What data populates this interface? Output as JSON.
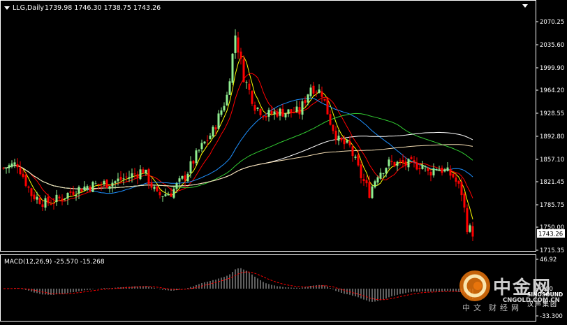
{
  "header": {
    "symbol_label": "LLG,Daily",
    "ohlc_text": "1739.98 1746.30 1738.75 1743.26"
  },
  "price_axis": {
    "ticks": [
      "2070.25",
      "2035.60",
      "1999.90",
      "1964.20",
      "1928.55",
      "1892.80",
      "1857.10",
      "1821.45",
      "1785.75",
      "1750.00",
      "1715.35"
    ],
    "current_price": "1743.26"
  },
  "macd": {
    "label": "MACD(12,26,9) -25.570 -15.268",
    "ticks": [
      "46.92",
      "0.00",
      "-33.300"
    ]
  },
  "watermark": {
    "brand_chars": [
      "中",
      "金",
      "网"
    ],
    "url": "CNGOLD.COM.CN",
    "sub_chars": [
      "中",
      "文",
      "财",
      "经",
      "网"
    ],
    "sino_text": "SINOSOUND",
    "sino_chars": [
      "汉",
      "声",
      "集",
      "团"
    ]
  },
  "colors": {
    "background": "#000000",
    "bull": "#90ee90",
    "bear": "#ff0000",
    "ma_yellow": "#ffff00",
    "ma_blue": "#1e90ff",
    "ma_green": "#32cd32",
    "ma_white": "#ffffff",
    "ma_wheat": "#f5deb3",
    "ma_red": "#ff0000",
    "macd_hist": "#c0c0c0",
    "macd_signal": "#ff0000"
  }
}
